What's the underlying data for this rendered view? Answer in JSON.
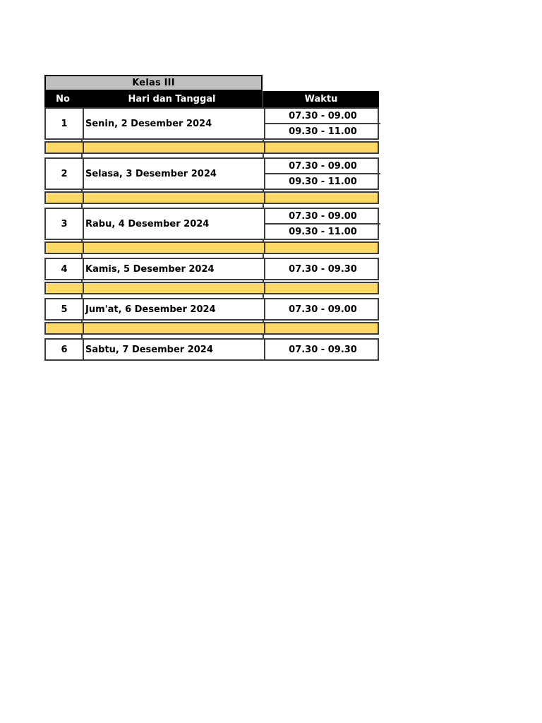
{
  "table": {
    "title": "Kelas III",
    "columns": [
      "No",
      "Hari dan Tanggal",
      "Waktu"
    ],
    "rows": [
      {
        "no": "1",
        "day": "Senin, 2 Desember 2024",
        "times": [
          "07.30 - 09.00",
          "09.30 - 11.00"
        ]
      },
      {
        "no": "2",
        "day": "Selasa, 3 Desember 2024",
        "times": [
          "07.30 - 09.00",
          "09.30 - 11.00"
        ]
      },
      {
        "no": "3",
        "day": "Rabu, 4 Desember 2024",
        "times": [
          "07.30 - 09.00",
          "09.30 - 11.00"
        ]
      },
      {
        "no": "4",
        "day": "Kamis, 5 Desember 2024",
        "times": [
          "07.30 - 09.30"
        ]
      },
      {
        "no": "5",
        "day": "Jum'at, 6 Desember 2024",
        "times": [
          "07.30 - 09.00"
        ]
      },
      {
        "no": "6",
        "day": "Sabtu, 7 Desember 2024",
        "times": [
          "07.30 - 09.30"
        ]
      }
    ],
    "colors": {
      "page_bg": "#ffffff",
      "title_bg": "#bfbfbf",
      "header_bg": "#000000",
      "header_text": "#ffffff",
      "separator_bg": "#ffd966",
      "border": "#3c3c3c"
    }
  }
}
